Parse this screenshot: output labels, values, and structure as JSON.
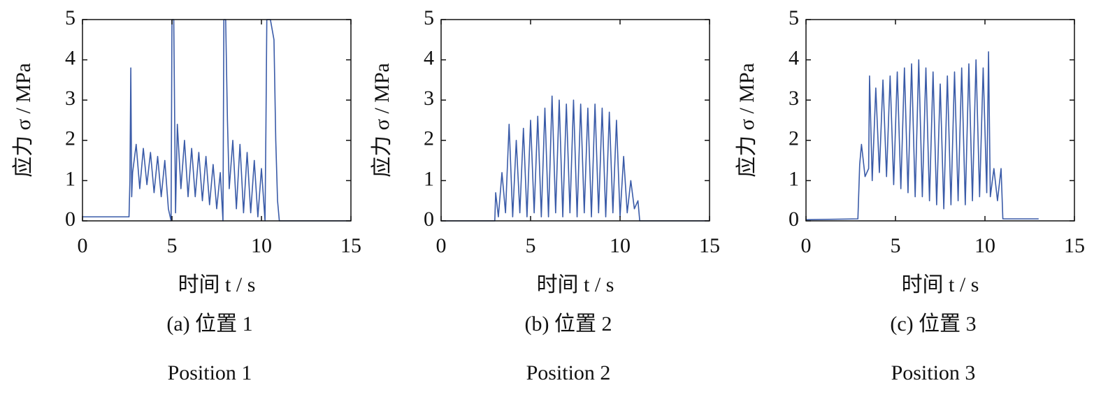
{
  "chart_data": [
    {
      "type": "line",
      "xlabel": "时间 t / s",
      "ylabel": "应力 σ / MPa",
      "caption": "(a) 位置 1",
      "subcaption": "Position 1",
      "xlim": [
        0,
        15
      ],
      "ylim": [
        0,
        5
      ],
      "xticks": [
        0,
        5,
        10,
        15
      ],
      "yticks": [
        0,
        1,
        2,
        3,
        4,
        5
      ],
      "color": "#3a5ba8",
      "x": [
        0,
        2.6,
        2.65,
        2.7,
        2.75,
        2.8,
        3.0,
        3.2,
        3.4,
        3.6,
        3.8,
        4.0,
        4.2,
        4.4,
        4.6,
        4.8,
        4.95,
        5.0,
        5.1,
        5.2,
        5.3,
        5.5,
        5.7,
        5.9,
        6.1,
        6.3,
        6.5,
        6.7,
        6.9,
        7.1,
        7.3,
        7.5,
        7.7,
        7.85,
        7.9,
        8.0,
        8.1,
        8.2,
        8.4,
        8.6,
        8.8,
        9.0,
        9.2,
        9.4,
        9.6,
        9.8,
        10.0,
        10.2,
        10.25,
        10.3,
        10.5,
        10.7,
        10.8,
        10.9,
        11.0,
        15
      ],
      "values": [
        0.1,
        0.1,
        1.0,
        3.8,
        0.6,
        1.2,
        1.9,
        0.8,
        1.8,
        0.9,
        1.7,
        0.7,
        1.6,
        0.6,
        1.5,
        0.3,
        0,
        5,
        5,
        0.2,
        2.4,
        0.8,
        2.0,
        0.6,
        1.8,
        0.6,
        1.7,
        0.5,
        1.6,
        0.4,
        1.4,
        0.3,
        1.2,
        0,
        5,
        5,
        2.5,
        0.8,
        2.0,
        0.3,
        1.9,
        0.2,
        1.7,
        0.2,
        1.5,
        0.1,
        1.3,
        0,
        2.3,
        5,
        5,
        4.5,
        2.0,
        0.5,
        0,
        0
      ]
    },
    {
      "type": "line",
      "xlabel": "时间 t / s",
      "ylabel": "应力 σ / MPa",
      "caption": "(b) 位置 2",
      "subcaption": "Position 2",
      "xlim": [
        0,
        15
      ],
      "ylim": [
        0,
        5
      ],
      "xticks": [
        0,
        5,
        10,
        15
      ],
      "yticks": [
        0,
        1,
        2,
        3,
        4,
        5
      ],
      "color": "#3a5ba8",
      "x": [
        0,
        3.0,
        3.05,
        3.2,
        3.4,
        3.6,
        3.8,
        4.0,
        4.2,
        4.4,
        4.6,
        4.8,
        5.0,
        5.2,
        5.4,
        5.6,
        5.8,
        6.0,
        6.2,
        6.4,
        6.6,
        6.8,
        7.0,
        7.2,
        7.4,
        7.6,
        7.8,
        8.0,
        8.2,
        8.4,
        8.6,
        8.8,
        9.0,
        9.2,
        9.4,
        9.6,
        9.8,
        10.0,
        10.2,
        10.4,
        10.6,
        10.8,
        11.0,
        11.1,
        15
      ],
      "values": [
        0,
        0,
        0.7,
        0.1,
        1.2,
        0.2,
        2.4,
        0.1,
        2.0,
        0.2,
        2.3,
        0.1,
        2.5,
        0.2,
        2.6,
        0.1,
        2.8,
        0.1,
        3.1,
        0.2,
        3.0,
        0.1,
        2.9,
        0.2,
        3.0,
        0.1,
        2.9,
        0.2,
        2.8,
        0.1,
        2.9,
        0.2,
        2.8,
        0.1,
        2.7,
        0.2,
        2.5,
        0.1,
        1.6,
        0.2,
        1.0,
        0.3,
        0.5,
        0,
        0
      ]
    },
    {
      "type": "line",
      "xlabel": "时间 t / s",
      "ylabel": "应力 σ / MPa",
      "caption": "(c) 位置 3",
      "subcaption": "Position 3",
      "xlim": [
        0,
        15
      ],
      "ylim": [
        0,
        5
      ],
      "xticks": [
        0,
        5,
        10,
        15
      ],
      "yticks": [
        0,
        1,
        2,
        3,
        4,
        5
      ],
      "color": "#3a5ba8",
      "x": [
        0,
        2.9,
        3.0,
        3.1,
        3.3,
        3.5,
        3.55,
        3.7,
        3.9,
        4.1,
        4.3,
        4.5,
        4.7,
        4.9,
        5.1,
        5.3,
        5.5,
        5.7,
        5.9,
        6.1,
        6.3,
        6.5,
        6.7,
        6.9,
        7.1,
        7.3,
        7.5,
        7.7,
        7.9,
        8.1,
        8.3,
        8.5,
        8.7,
        8.9,
        9.1,
        9.3,
        9.5,
        9.7,
        9.9,
        10.1,
        10.2,
        10.3,
        10.5,
        10.7,
        10.9,
        11.0,
        13.0
      ],
      "values": [
        0.03,
        0.05,
        1.4,
        1.9,
        1.1,
        1.3,
        3.6,
        1.0,
        3.3,
        1.2,
        3.5,
        1.1,
        3.6,
        0.9,
        3.7,
        0.8,
        3.8,
        0.7,
        3.9,
        0.6,
        4.0,
        0.6,
        3.8,
        0.5,
        3.7,
        0.4,
        3.4,
        0.3,
        3.6,
        0.4,
        3.7,
        0.5,
        3.8,
        0.4,
        3.9,
        0.5,
        4.0,
        0.6,
        3.8,
        0.7,
        4.2,
        0.6,
        1.3,
        0.5,
        1.3,
        0.05,
        0.05
      ]
    }
  ]
}
